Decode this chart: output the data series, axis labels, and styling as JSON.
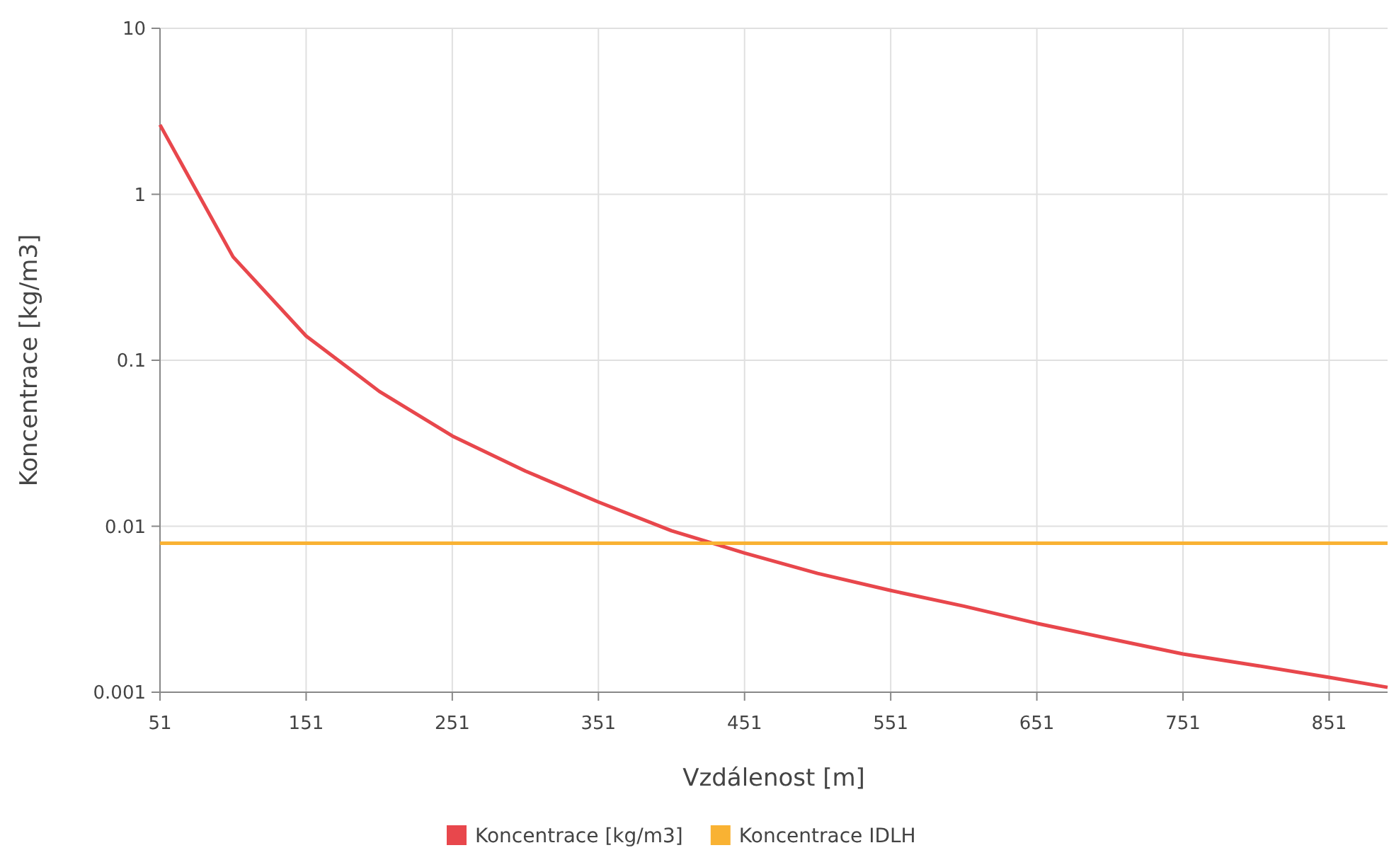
{
  "chart_data": {
    "type": "line",
    "xlabel": "Vzdálenost [m]",
    "ylabel": "Koncentrace [kg/m3]",
    "x": [
      51,
      101,
      151,
      201,
      251,
      301,
      351,
      401,
      451,
      501,
      551,
      601,
      651,
      701,
      751,
      801,
      851,
      891
    ],
    "series": [
      {
        "name": "Koncentrace [kg/m3]",
        "color": "#e8474c",
        "values": [
          2.62,
          0.42,
          0.14,
          0.065,
          0.035,
          0.0215,
          0.014,
          0.0094,
          0.0069,
          0.0052,
          0.0041,
          0.0033,
          0.0026,
          0.0021,
          0.0017,
          0.00145,
          0.00123,
          0.00107
        ]
      },
      {
        "name": "Koncentrace IDLH",
        "color": "#f9b233",
        "values": [
          0.0079,
          0.0079,
          0.0079,
          0.0079,
          0.0079,
          0.0079,
          0.0079,
          0.0079,
          0.0079,
          0.0079,
          0.0079,
          0.0079,
          0.0079,
          0.0079,
          0.0079,
          0.0079,
          0.0079,
          0.0079
        ]
      }
    ],
    "log": "y",
    "xlim": [
      51,
      891
    ],
    "xticks": [
      51,
      151,
      251,
      351,
      451,
      551,
      651,
      751,
      851
    ],
    "ylim": [
      0.001,
      10
    ],
    "yticks": [
      0.001,
      0.01,
      0.1,
      1,
      10
    ],
    "grid": true,
    "legend": "bottom",
    "marker": "none",
    "line_style": "solid"
  }
}
